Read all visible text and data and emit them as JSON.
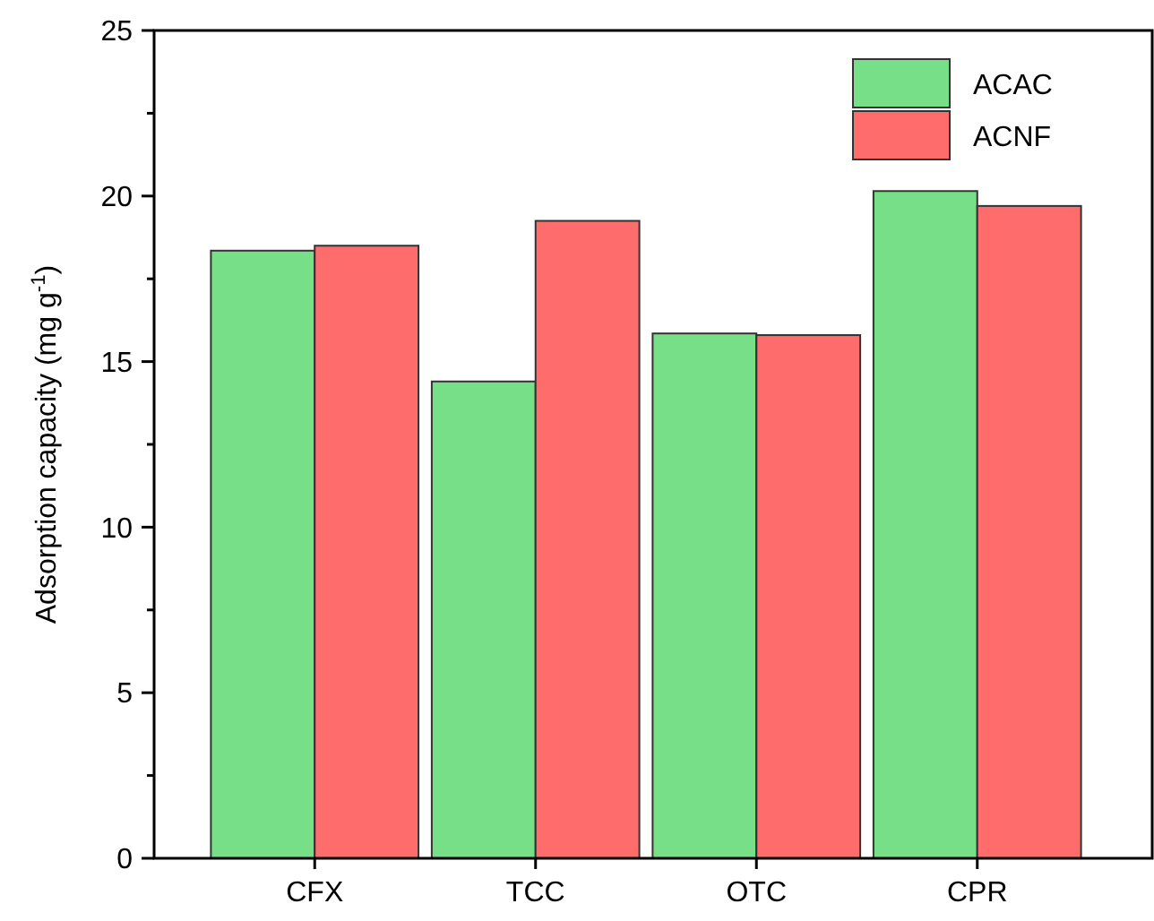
{
  "chart_data": {
    "type": "bar",
    "ylabel": "Adsorption capacity (mg g$^{-1}$)",
    "categories": [
      "CFX",
      "TCC",
      "OTC",
      "CPR"
    ],
    "series": [
      {
        "name": "ACAC",
        "color": "#76df88",
        "values": [
          18.35,
          14.4,
          15.85,
          20.15
        ]
      },
      {
        "name": "ACNF",
        "color": "#fe6c6c",
        "values": [
          18.5,
          19.25,
          15.8,
          19.7
        ]
      }
    ],
    "ylim": [
      0,
      25
    ],
    "yticks": [
      0,
      {
        "value": 2.5,
        "label": null
      },
      5,
      {
        "value": 7.5,
        "label": null
      },
      10,
      {
        "value": 12.5,
        "label": null
      },
      15,
      {
        "value": 17.5,
        "label": null
      },
      20,
      {
        "value": 22.5,
        "label": null
      },
      25
    ],
    "legend": "top right",
    "grid": false
  }
}
